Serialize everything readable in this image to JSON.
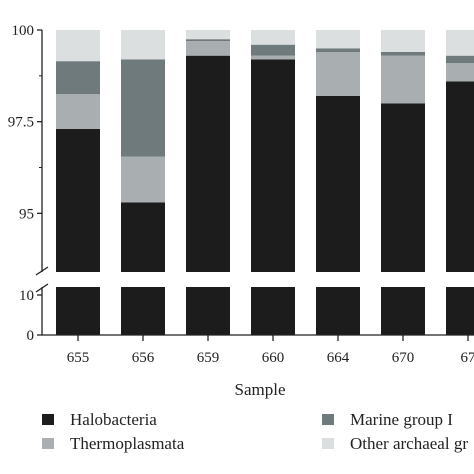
{
  "chart_data": {
    "type": "bar",
    "stacked": true,
    "broken_y_axis": true,
    "xlabel": "Sample",
    "ylabel": "",
    "categories": [
      "655",
      "656",
      "659",
      "660",
      "664",
      "670",
      "67"
    ],
    "upper_ylim": [
      93.4,
      100
    ],
    "lower_ylim": [
      0,
      12
    ],
    "upper_yticks": [
      "95",
      "97.5",
      "100"
    ],
    "upper_ytick_values": [
      95,
      97.5,
      100
    ],
    "lower_yticks": [
      "0",
      "10"
    ],
    "lower_ytick_values": [
      0,
      10
    ],
    "series": [
      {
        "name": "Halobacteria",
        "color": "#1c1c1c",
        "values": [
          97.3,
          95.3,
          99.3,
          99.2,
          98.2,
          98.0,
          98.6
        ]
      },
      {
        "name": "Thermoplasmata",
        "color": "#a9aeb0",
        "values": [
          0.95,
          1.25,
          0.4,
          0.1,
          1.2,
          1.3,
          0.5
        ]
      },
      {
        "name": "Marine group I",
        "color": "#6f7a7c",
        "values": [
          0.9,
          2.65,
          0.05,
          0.3,
          0.1,
          0.1,
          0.2
        ]
      },
      {
        "name": "Other archaeal gr",
        "color": "#dcdfe0",
        "values": [
          0.85,
          0.8,
          0.25,
          0.4,
          0.5,
          0.6,
          0.7
        ]
      }
    ],
    "grid": false,
    "legend_position": "bottom"
  }
}
